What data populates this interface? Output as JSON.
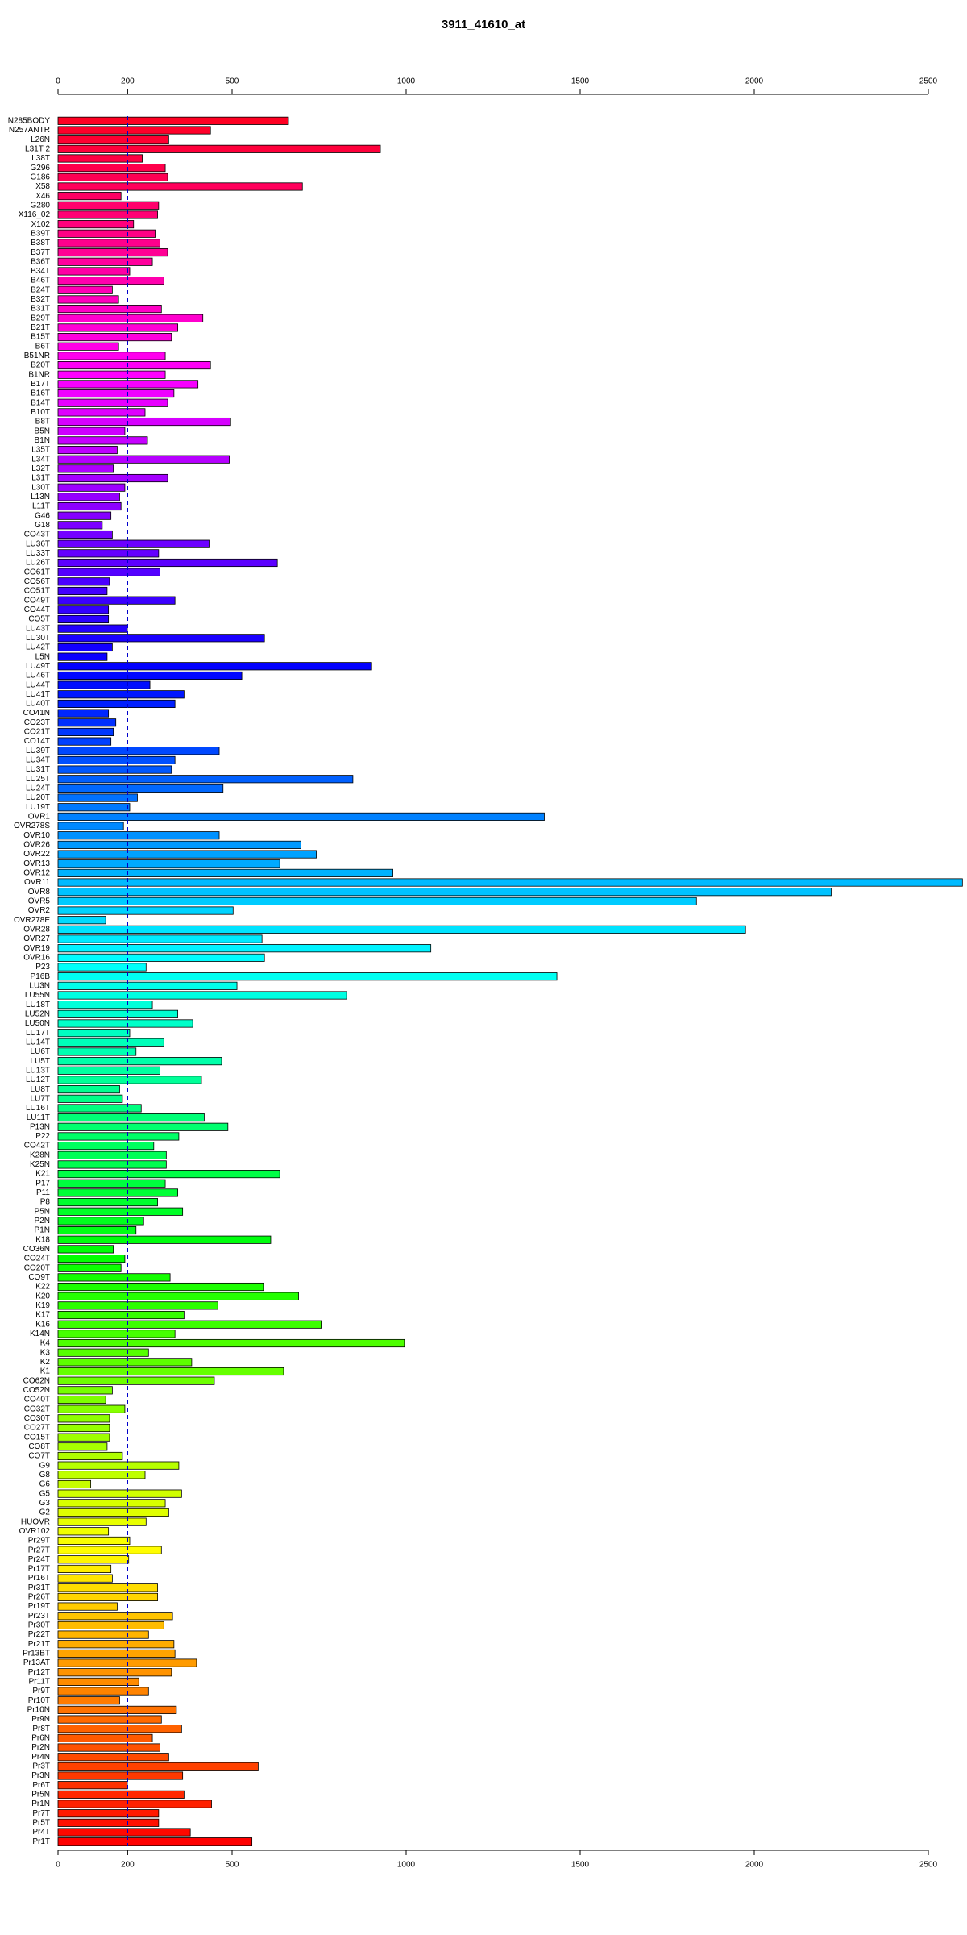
{
  "chart_data": {
    "type": "bar",
    "orientation": "horizontal",
    "title": "3911_41610_at",
    "categories": [
      "N285BODY",
      "N257ANTR",
      "L26N",
      "L31T 2",
      "L38T",
      "G296",
      "G186",
      "X58",
      "X46",
      "G280",
      "X116_02",
      "X102",
      "B39T",
      "B38T",
      "B37T",
      "B36T",
      "B34T",
      "B46T",
      "B24T",
      "B32T",
      "B31T",
      "B29T",
      "B21T",
      "B15T",
      "B6T",
      "B51NR",
      "B20T",
      "B1NR",
      "B17T",
      "B16T",
      "B14T",
      "B10T",
      "B8T",
      "B5N",
      "B1N",
      "L35T",
      "L34T",
      "L32T",
      "L31T",
      "L30T",
      "L13N",
      "L11T",
      "G46",
      "G18",
      "CO43T",
      "LU36T",
      "LU33T",
      "LU26T",
      "CO61T",
      "CO56T",
      "CO51T",
      "CO49T",
      "CO44T",
      "CO5T",
      "LU43T",
      "LU30T",
      "LU42T",
      "L5N",
      "LU49T",
      "LU46T",
      "LU44T",
      "LU41T",
      "LU40T",
      "CO41N",
      "CO23T",
      "CO21T",
      "CO14T",
      "LU39T",
      "LU34T",
      "LU31T",
      "LU25T",
      "LU24T",
      "LU20T",
      "LU19T",
      "OVR1",
      "OVR278S",
      "OVR10",
      "OVR26",
      "OVR22",
      "OVR13",
      "OVR12",
      "OVR11",
      "OVR8",
      "OVR5",
      "OVR2",
      "OVR278E",
      "OVR28",
      "OVR27",
      "OVR19",
      "OVR16",
      "P23",
      "P16B",
      "LU3N",
      "LU55N",
      "LU18T",
      "LU52N",
      "LU50N",
      "LU17T",
      "LU14T",
      "LU6T",
      "LU5T",
      "LU13T",
      "LU12T",
      "LU8T",
      "LU7T",
      "LU16T",
      "LU11T",
      "P13N",
      "P22",
      "CO42T",
      "K28N",
      "K25N",
      "K21",
      "P17",
      "P11",
      "P8",
      "P5N",
      "P2N",
      "P1N",
      "K18",
      "CO36N",
      "CO24T",
      "CO20T",
      "CO9T",
      "K22",
      "K20",
      "K19",
      "K17",
      "K16",
      "K14N",
      "K4",
      "K3",
      "K2",
      "K1",
      "CO62N",
      "CO52N",
      "CO40T",
      "CO32T",
      "CO30T",
      "CO27T",
      "CO15T",
      "CO8T",
      "CO7T",
      "G9",
      "G8",
      "G6",
      "G5",
      "G3",
      "G2",
      "HUOVR",
      "OVR102",
      "Pr29T",
      "Pr27T",
      "Pr24T",
      "Pr17T",
      "Pr16T",
      "Pr31T",
      "Pr26T",
      "Pr19T",
      "Pr23T",
      "Pr30T",
      "Pr22T",
      "Pr21T",
      "Pr13BT",
      "Pr13AT",
      "Pr12T",
      "Pr11T",
      "Pr9T",
      "Pr10T",
      "Pr10N",
      "Pr9N",
      "Pr8T",
      "Pr6N",
      "Pr2N",
      "Pr4N",
      "Pr3T",
      "Pr3N",
      "Pr6T",
      "Pr5N",
      "Pr1N",
      "Pr7T",
      "Pr5T",
      "Pr4T",
      "Pr1T"
    ],
    "values": [
      662,
      438,
      318,
      926,
      242,
      308,
      315,
      702,
      181,
      289,
      286,
      217,
      279,
      293,
      315,
      271,
      206,
      304,
      156,
      174,
      297,
      416,
      344,
      326,
      174,
      308,
      438,
      308,
      402,
      333,
      315,
      250,
      496,
      192,
      257,
      170,
      492,
      159,
      315,
      192,
      177,
      181,
      152,
      127,
      156,
      434,
      289,
      630,
      293,
      148,
      141,
      336,
      145,
      145,
      199,
      593,
      156,
      141,
      901,
      528,
      264,
      362,
      336,
      145,
      166,
      159,
      152,
      463,
      336,
      326,
      847,
      474,
      228,
      206,
      1397,
      188,
      463,
      698,
      742,
      637,
      962,
      2598,
      2221,
      1834,
      503,
      137,
      1975,
      586,
      1071,
      593,
      253,
      1433,
      514,
      829,
      271,
      344,
      387,
      206,
      304,
      224,
      470,
      293,
      412,
      177,
      185,
      239,
      420,
      488,
      347,
      275,
      311,
      311,
      637,
      308,
      344,
      286,
      358,
      246,
      224,
      611,
      159,
      192,
      181,
      322,
      590,
      691,
      459,
      362,
      756,
      336,
      995,
      260,
      384,
      648,
      449,
      156,
      137,
      192,
      148,
      148,
      148,
      141,
      185,
      347,
      250,
      94,
      355,
      308,
      318,
      253,
      145,
      206,
      297,
      203,
      152,
      156,
      286,
      286,
      170,
      329,
      304,
      260,
      333,
      336,
      398,
      326,
      232,
      260,
      177,
      340,
      297,
      355,
      271,
      293,
      318,
      575,
      358,
      199,
      362,
      441,
      289,
      289,
      380,
      557
    ],
    "color_scale": {
      "hue_from": 352,
      "hue_to": 0,
      "saturation": 100,
      "lightness": 50
    },
    "xlim": [
      0,
      2500
    ],
    "xticks": [
      0,
      200,
      500,
      1000,
      1500,
      2000,
      2500
    ],
    "reference_line": {
      "value": 200,
      "color": "#0000cc"
    }
  }
}
